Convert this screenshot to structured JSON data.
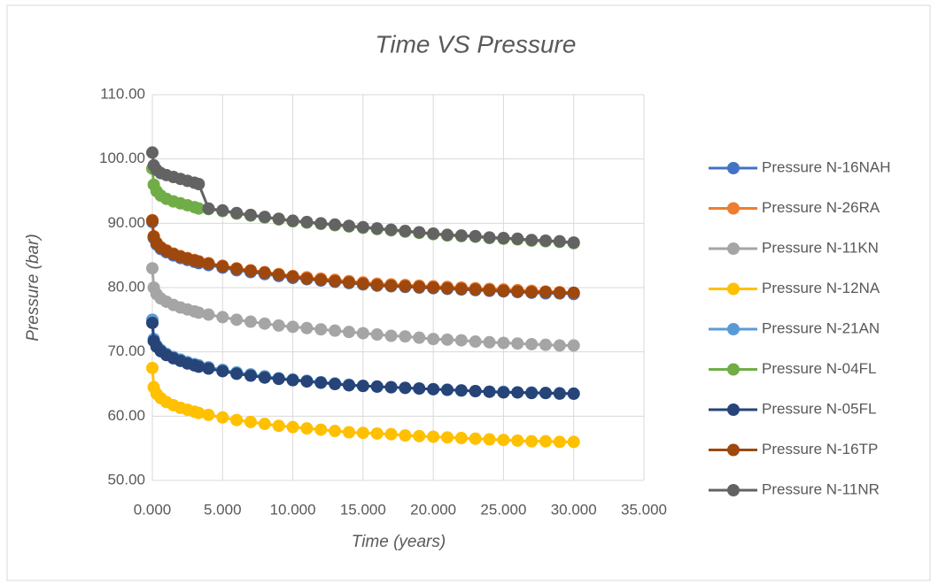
{
  "chart_data": {
    "type": "line",
    "title": "Time VS Pressure",
    "x_label": "Time (years)",
    "y_label": "Pressure (bar)",
    "x": [
      0,
      0.1,
      0.3,
      0.6,
      1,
      1.5,
      2,
      2.5,
      3,
      3.3,
      4,
      5,
      6,
      7,
      8,
      9,
      10,
      11,
      12,
      13,
      14,
      15,
      16,
      17,
      18,
      19,
      20,
      21,
      22,
      23,
      24,
      25,
      26,
      27,
      28,
      29,
      30
    ],
    "xlim": [
      0,
      35
    ],
    "ylim": [
      50,
      110
    ],
    "xticks": [
      {
        "value": 0,
        "label": "0.000"
      },
      {
        "value": 5,
        "label": "5.000"
      },
      {
        "value": 10,
        "label": "10.000"
      },
      {
        "value": 15,
        "label": "15.000"
      },
      {
        "value": 20,
        "label": "20.000"
      },
      {
        "value": 25,
        "label": "25.000"
      },
      {
        "value": 30,
        "label": "30.000"
      },
      {
        "value": 35,
        "label": "35.000"
      }
    ],
    "yticks": [
      {
        "value": 50,
        "label": "50.00"
      },
      {
        "value": 60,
        "label": "60.00"
      },
      {
        "value": 70,
        "label": "70.00"
      },
      {
        "value": 80,
        "label": "80.00"
      },
      {
        "value": 90,
        "label": "90.00"
      },
      {
        "value": 100,
        "label": "100.00"
      },
      {
        "value": 110,
        "label": "110.00"
      }
    ],
    "grid": true,
    "legend": "right",
    "series": [
      {
        "name": "Pressure N-16NAH",
        "color": "#4472c4",
        "values": [
          90.2,
          87.7,
          86.7,
          86,
          85.5,
          85,
          84.6,
          84.3,
          84,
          83.8,
          83.5,
          83.1,
          82.7,
          82.4,
          82.1,
          81.8,
          81.5,
          81.3,
          81.1,
          80.9,
          80.7,
          80.5,
          80.3,
          80.2,
          80.1,
          80,
          79.9,
          79.8,
          79.7,
          79.6,
          79.5,
          79.4,
          79.3,
          79.2,
          79.1,
          79.1,
          79
        ]
      },
      {
        "name": "Pressure N-26RA",
        "color": "#ed7d31",
        "values": [
          90.5,
          88,
          87,
          86.3,
          85.8,
          85.3,
          84.9,
          84.6,
          84.3,
          84.1,
          83.8,
          83.4,
          83,
          82.7,
          82.4,
          82.1,
          81.8,
          81.6,
          81.4,
          81.2,
          81,
          80.8,
          80.6,
          80.5,
          80.4,
          80.3,
          80.2,
          80.1,
          80,
          79.9,
          79.8,
          79.7,
          79.6,
          79.5,
          79.4,
          79.3,
          79.2
        ]
      },
      {
        "name": "Pressure N-11KN",
        "color": "#a5a5a5",
        "values": [
          83,
          80,
          79,
          78.3,
          77.8,
          77.3,
          76.9,
          76.6,
          76.3,
          76.1,
          75.8,
          75.4,
          75,
          74.7,
          74.4,
          74.1,
          73.9,
          73.7,
          73.5,
          73.3,
          73.1,
          72.9,
          72.7,
          72.5,
          72.4,
          72.2,
          72,
          71.9,
          71.8,
          71.6,
          71.5,
          71.4,
          71.3,
          71.2,
          71.1,
          71,
          71
        ]
      },
      {
        "name": "Pressure N-12NA",
        "color": "#ffc000",
        "values": [
          67.5,
          64.5,
          63.5,
          62.8,
          62.2,
          61.7,
          61.3,
          61,
          60.7,
          60.5,
          60.2,
          59.8,
          59.4,
          59.1,
          58.8,
          58.5,
          58.3,
          58.1,
          57.9,
          57.7,
          57.5,
          57.4,
          57.3,
          57.2,
          57,
          56.9,
          56.8,
          56.7,
          56.6,
          56.5,
          56.4,
          56.3,
          56.2,
          56.1,
          56.1,
          56,
          56
        ]
      },
      {
        "name": "Pressure N-21AN",
        "color": "#5b9bd5",
        "values": [
          75,
          72,
          71,
          70.3,
          69.7,
          69.2,
          68.8,
          68.4,
          68.1,
          67.9,
          67.6,
          67.2,
          66.8,
          66.5,
          66.2,
          65.9,
          65.7,
          65.5,
          65.3,
          65.1,
          64.9,
          64.7,
          64.6,
          64.5,
          64.4,
          64.3,
          64.2,
          64.1,
          64,
          63.9,
          63.8,
          63.8,
          63.7,
          63.7,
          63.6,
          63.6,
          63.5
        ]
      },
      {
        "name": "Pressure N-04FL",
        "color": "#70ad47",
        "values": [
          98.5,
          96,
          95,
          94.3,
          93.8,
          93.4,
          93.1,
          92.8,
          92.5,
          92.3,
          92.2,
          91.9,
          91.5,
          91.2,
          90.9,
          90.6,
          90.3,
          90.1,
          89.9,
          89.7,
          89.5,
          89.3,
          89.1,
          88.9,
          88.7,
          88.5,
          88.3,
          88.1,
          88,
          87.9,
          87.7,
          87.6,
          87.5,
          87.3,
          87.2,
          87.1,
          86.9
        ]
      },
      {
        "name": "Pressure N-05FL",
        "color": "#264478",
        "values": [
          74.5,
          71.7,
          70.8,
          70.1,
          69.5,
          69,
          68.6,
          68.2,
          67.9,
          67.7,
          67.4,
          67,
          66.6,
          66.3,
          66,
          65.8,
          65.6,
          65.4,
          65.2,
          65,
          64.8,
          64.7,
          64.6,
          64.5,
          64.4,
          64.3,
          64.2,
          64.1,
          64,
          63.9,
          63.8,
          63.7,
          63.7,
          63.6,
          63.6,
          63.5,
          63.5
        ]
      },
      {
        "name": "Pressure N-16TP",
        "color": "#9e480e",
        "values": [
          90.4,
          87.9,
          86.9,
          86.2,
          85.7,
          85.2,
          84.8,
          84.5,
          84.2,
          84,
          83.7,
          83.3,
          82.9,
          82.6,
          82.3,
          82,
          81.7,
          81.4,
          81.2,
          81,
          80.8,
          80.6,
          80.4,
          80.3,
          80.2,
          80.1,
          80,
          79.9,
          79.8,
          79.7,
          79.6,
          79.5,
          79.4,
          79.3,
          79.3,
          79.2,
          79.2
        ]
      },
      {
        "name": "Pressure N-11NR",
        "color": "#636363",
        "values": [
          101,
          99,
          98.3,
          97.8,
          97.5,
          97.2,
          96.9,
          96.6,
          96.3,
          96.1,
          92.3,
          92,
          91.6,
          91.3,
          91,
          90.7,
          90.4,
          90.2,
          90,
          89.8,
          89.6,
          89.4,
          89.2,
          89,
          88.8,
          88.6,
          88.4,
          88.2,
          88.1,
          88,
          87.8,
          87.7,
          87.6,
          87.4,
          87.3,
          87.2,
          87
        ]
      }
    ]
  }
}
